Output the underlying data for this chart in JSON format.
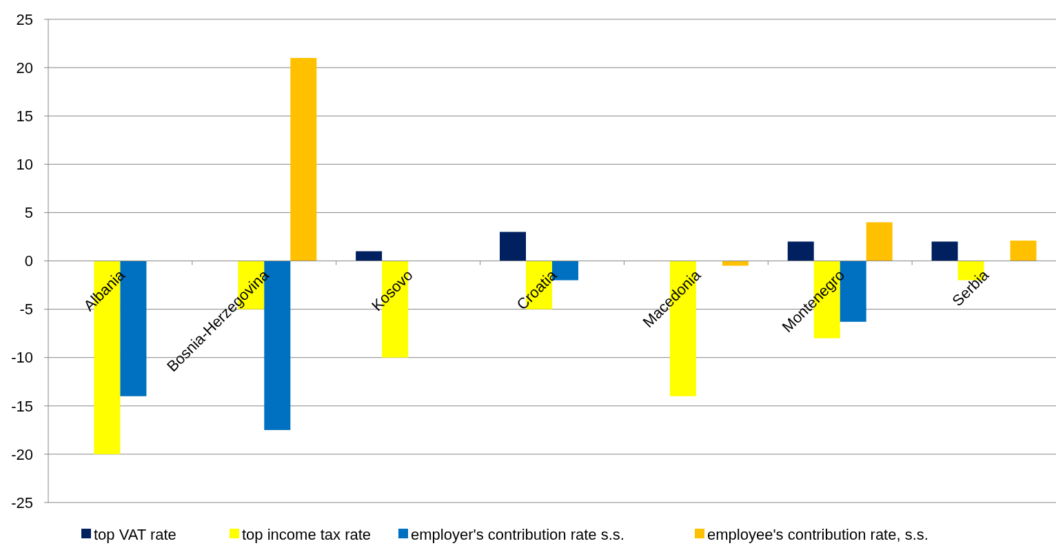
{
  "chart_data": {
    "type": "bar",
    "categories": [
      "Albania",
      "Bosnia-Herzegovina",
      "Kosovo",
      "Croatia",
      "Macedonia",
      "Montenegro",
      "Serbia"
    ],
    "series": [
      {
        "name": "top VAT rate",
        "color": "#002060",
        "values": [
          null,
          null,
          1,
          3,
          null,
          2,
          2
        ]
      },
      {
        "name": "top income tax rate",
        "color": "#ffff00",
        "values": [
          -20,
          -5,
          -10,
          -5,
          -14,
          -8,
          -2
        ]
      },
      {
        "name": "employer's contribution rate s.s.",
        "color": "#0070c0",
        "values": [
          -14,
          -17.5,
          null,
          -2,
          null,
          -6.3,
          null
        ]
      },
      {
        "name": "employee's contribution rate, s.s.",
        "color": "#ffc000",
        "values": [
          null,
          21,
          null,
          null,
          -0.5,
          4,
          2.1
        ]
      }
    ],
    "ylim": [
      -25,
      25
    ],
    "yticks": [
      -25,
      -20,
      -15,
      -10,
      -5,
      0,
      5,
      10,
      15,
      20,
      25
    ],
    "grid": "y",
    "legend": "bottom"
  }
}
